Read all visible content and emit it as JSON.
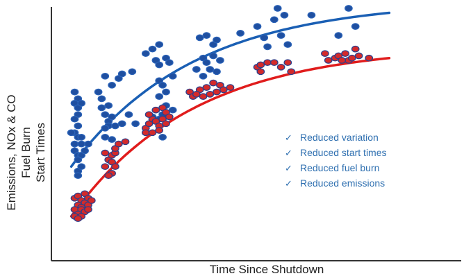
{
  "chart_data": {
    "type": "scatter",
    "title": "",
    "xlabel": "Time Since Shutdown",
    "ylabel_lines": [
      "Emissions, NOx & CO",
      "Fuel Burn",
      "Start Times"
    ],
    "xlim": [
      0,
      100
    ],
    "ylim": [
      0,
      100
    ],
    "grid": false,
    "legend": {
      "placement": "right-center",
      "items": [
        "Reduced variation",
        "Reduced start times",
        "Reduced fuel burn",
        "Reduced emissions"
      ],
      "check_glyph": "✓"
    },
    "series": [
      {
        "kind": "points",
        "color": "#1f4fa0",
        "edge": "#2b63b8",
        "points": [
          [
            4,
            63
          ],
          [
            5,
            60
          ],
          [
            4,
            58
          ],
          [
            5,
            56
          ],
          [
            6,
            58
          ],
          [
            5,
            53
          ],
          [
            4,
            51
          ],
          [
            5,
            48
          ],
          [
            4,
            45
          ],
          [
            5,
            43
          ],
          [
            6,
            43
          ],
          [
            4,
            40
          ],
          [
            6,
            40
          ],
          [
            4,
            37
          ],
          [
            5,
            35
          ],
          [
            6,
            35
          ],
          [
            5,
            33
          ],
          [
            3,
            45
          ],
          [
            8,
            40
          ],
          [
            7,
            37
          ],
          [
            5,
            28
          ],
          [
            6,
            30
          ],
          [
            5,
            26
          ],
          [
            11,
            63
          ],
          [
            12,
            60
          ],
          [
            13,
            70
          ],
          [
            12,
            56
          ],
          [
            13,
            53
          ],
          [
            14,
            50
          ],
          [
            14,
            48
          ],
          [
            15,
            52
          ],
          [
            13,
            47
          ],
          [
            16,
            48
          ],
          [
            18,
            49
          ],
          [
            20,
            53
          ],
          [
            22,
            49
          ],
          [
            15,
            66
          ],
          [
            17,
            69
          ],
          [
            18,
            71
          ],
          [
            21,
            72
          ],
          [
            14,
            57
          ],
          [
            13,
            43
          ],
          [
            15,
            42
          ],
          [
            25,
            80
          ],
          [
            27,
            82
          ],
          [
            29,
            84
          ],
          [
            28,
            77
          ],
          [
            29,
            75
          ],
          [
            31,
            78
          ],
          [
            32,
            76
          ],
          [
            29,
            68
          ],
          [
            30,
            66
          ],
          [
            31,
            63
          ],
          [
            29,
            61
          ],
          [
            33,
            70
          ],
          [
            28,
            55
          ],
          [
            30,
            53
          ],
          [
            31,
            57
          ],
          [
            27,
            52
          ],
          [
            29,
            51
          ],
          [
            33,
            55
          ],
          [
            30,
            43
          ],
          [
            41,
            87
          ],
          [
            43,
            88
          ],
          [
            45,
            84
          ],
          [
            46,
            86
          ],
          [
            42,
            78
          ],
          [
            43,
            76
          ],
          [
            45,
            79
          ],
          [
            47,
            77
          ],
          [
            40,
            73
          ],
          [
            42,
            70
          ],
          [
            44,
            73
          ],
          [
            46,
            72
          ],
          [
            53,
            89
          ],
          [
            58,
            92
          ],
          [
            60,
            87
          ],
          [
            63,
            95
          ],
          [
            64,
            100
          ],
          [
            66,
            97
          ],
          [
            61,
            83
          ],
          [
            67,
            84
          ],
          [
            65,
            88
          ],
          [
            74,
            97
          ],
          [
            85,
            100
          ],
          [
            82,
            88
          ],
          [
            87,
            92
          ]
        ]
      },
      {
        "kind": "points",
        "color": "#d42a2a",
        "edge": "#2b3f8c",
        "points": [
          [
            4,
            16
          ],
          [
            5,
            17
          ],
          [
            6,
            15
          ],
          [
            7,
            14
          ],
          [
            5,
            13
          ],
          [
            6,
            12
          ],
          [
            4,
            11
          ],
          [
            6,
            11
          ],
          [
            7,
            10
          ],
          [
            5,
            9
          ],
          [
            4,
            8
          ],
          [
            6,
            8
          ],
          [
            5,
            7
          ],
          [
            7,
            18
          ],
          [
            8,
            16
          ],
          [
            8,
            13
          ],
          [
            9,
            15
          ],
          [
            8,
            11
          ],
          [
            13,
            30
          ],
          [
            14,
            33
          ],
          [
            15,
            35
          ],
          [
            16,
            36
          ],
          [
            15,
            32
          ],
          [
            16,
            30
          ],
          [
            15,
            27
          ],
          [
            14,
            26
          ],
          [
            16,
            38
          ],
          [
            17,
            40
          ],
          [
            19,
            41
          ],
          [
            13,
            36
          ],
          [
            25,
            47
          ],
          [
            26,
            49
          ],
          [
            27,
            51
          ],
          [
            28,
            50
          ],
          [
            29,
            48
          ],
          [
            30,
            51
          ],
          [
            31,
            49
          ],
          [
            25,
            45
          ],
          [
            27,
            45
          ],
          [
            29,
            46
          ],
          [
            26,
            53
          ],
          [
            28,
            55
          ],
          [
            30,
            56
          ],
          [
            31,
            54
          ],
          [
            32,
            52
          ],
          [
            38,
            63
          ],
          [
            39,
            61
          ],
          [
            41,
            64
          ],
          [
            43,
            65
          ],
          [
            45,
            67
          ],
          [
            47,
            66
          ],
          [
            46,
            63
          ],
          [
            44,
            62
          ],
          [
            42,
            61
          ],
          [
            40,
            62
          ],
          [
            48,
            64
          ],
          [
            50,
            65
          ],
          [
            58,
            74
          ],
          [
            59,
            75
          ],
          [
            61,
            76
          ],
          [
            63,
            76
          ],
          [
            65,
            74
          ],
          [
            67,
            76
          ],
          [
            68,
            72
          ],
          [
            59,
            72
          ],
          [
            78,
            80
          ],
          [
            79,
            77
          ],
          [
            81,
            78
          ],
          [
            82,
            79
          ],
          [
            84,
            80
          ],
          [
            85,
            77
          ],
          [
            86,
            78
          ],
          [
            87,
            82
          ],
          [
            88,
            79
          ],
          [
            91,
            78
          ],
          [
            83,
            77
          ]
        ]
      },
      {
        "kind": "trend",
        "color": "#1a5fb4",
        "x": [
          3,
          97
        ],
        "y": [
          30,
          98
        ],
        "shape": "saturating"
      },
      {
        "kind": "trend",
        "color": "#e01c1c",
        "x": [
          3,
          97
        ],
        "y": [
          8,
          78
        ],
        "shape": "saturating"
      }
    ]
  }
}
